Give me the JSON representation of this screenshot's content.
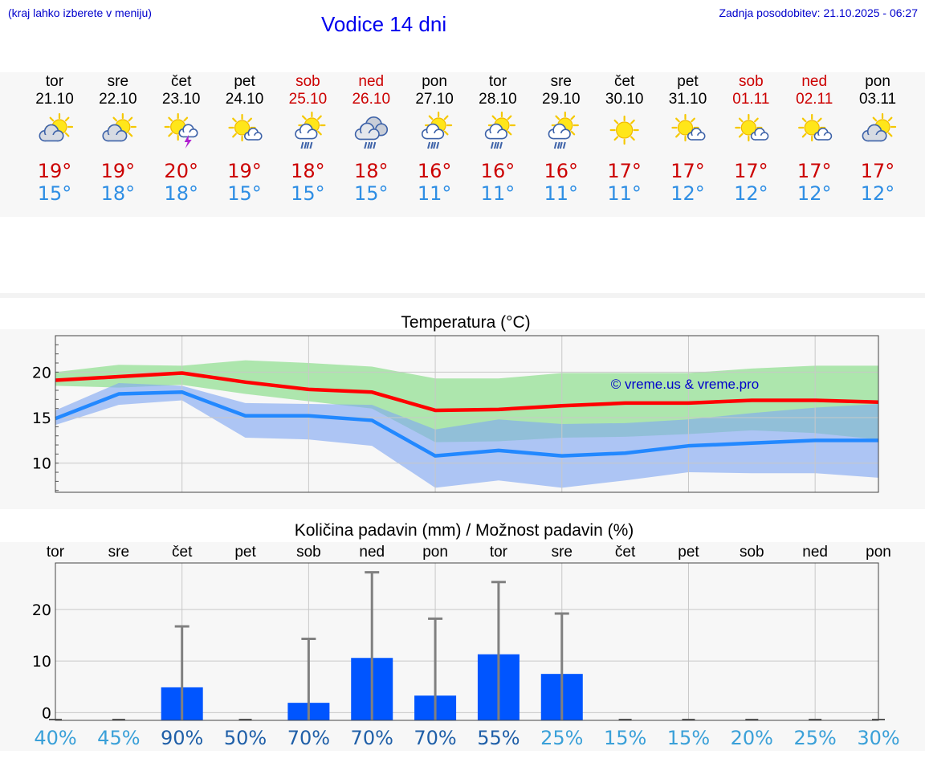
{
  "header": {
    "hint": "(kraj lahko izberete v meniju)",
    "title": "Vodice 14 dni",
    "updated": "Zadnja posodobitev: 21.10.2025 - 06:27"
  },
  "forecast": {
    "days": [
      {
        "day": "tor",
        "date": "21.10",
        "weekend": false,
        "icon": "partly-cloudy-icon",
        "high": "19°",
        "low": "15°"
      },
      {
        "day": "sre",
        "date": "22.10",
        "weekend": false,
        "icon": "partly-cloudy-icon",
        "high": "19°",
        "low": "18°"
      },
      {
        "day": "čet",
        "date": "23.10",
        "weekend": false,
        "icon": "sun-thunder-icon",
        "high": "20°",
        "low": "18°"
      },
      {
        "day": "pet",
        "date": "24.10",
        "weekend": false,
        "icon": "sun-small-cloud-icon",
        "high": "19°",
        "low": "15°"
      },
      {
        "day": "sob",
        "date": "25.10",
        "weekend": true,
        "icon": "sun-cloud-rain-icon",
        "high": "18°",
        "low": "15°"
      },
      {
        "day": "ned",
        "date": "26.10",
        "weekend": true,
        "icon": "cloud-rain-icon",
        "high": "18°",
        "low": "15°"
      },
      {
        "day": "pon",
        "date": "27.10",
        "weekend": false,
        "icon": "sun-cloud-rain-icon",
        "high": "16°",
        "low": "11°"
      },
      {
        "day": "tor",
        "date": "28.10",
        "weekend": false,
        "icon": "sun-cloud-rain-icon",
        "high": "16°",
        "low": "11°"
      },
      {
        "day": "sre",
        "date": "29.10",
        "weekend": false,
        "icon": "sun-cloud-rain-icon",
        "high": "16°",
        "low": "11°"
      },
      {
        "day": "čet",
        "date": "30.10",
        "weekend": false,
        "icon": "sun-icon",
        "high": "17°",
        "low": "11°"
      },
      {
        "day": "pet",
        "date": "31.10",
        "weekend": false,
        "icon": "sun-small-cloud-icon",
        "high": "17°",
        "low": "12°"
      },
      {
        "day": "sob",
        "date": "01.11",
        "weekend": true,
        "icon": "sun-small-cloud-icon",
        "high": "17°",
        "low": "12°"
      },
      {
        "day": "ned",
        "date": "02.11",
        "weekend": true,
        "icon": "sun-small-cloud-icon",
        "high": "17°",
        "low": "12°"
      },
      {
        "day": "pon",
        "date": "03.11",
        "weekend": false,
        "icon": "partly-cloudy-icon",
        "high": "17°",
        "low": "12°"
      }
    ]
  },
  "chart_data": [
    {
      "type": "line",
      "title": "Temperatura (°C)",
      "xlabel": "",
      "ylabel": "",
      "watermark": "© vreme.us & vreme.pro",
      "x": [
        "tor",
        "sre",
        "čet",
        "pet",
        "sob",
        "ned",
        "pon",
        "tor",
        "sre",
        "čet",
        "pet",
        "sob",
        "ned",
        "pon"
      ],
      "ylim": [
        6.8,
        24
      ],
      "yticks": [
        10,
        15,
        20
      ],
      "grid": true,
      "series": [
        {
          "key": "high",
          "color": "#ff0000",
          "values": [
            19.1,
            19.5,
            19.9,
            18.9,
            18.1,
            17.8,
            15.8,
            15.9,
            16.3,
            16.6,
            16.6,
            16.9,
            16.9,
            16.7
          ]
        },
        {
          "key": "low",
          "color": "#2288ff",
          "values": [
            14.9,
            17.6,
            17.8,
            15.2,
            15.2,
            14.7,
            10.8,
            11.4,
            10.8,
            11.1,
            11.9,
            12.2,
            12.5,
            12.5
          ]
        }
      ],
      "bands": [
        {
          "key": "high-range",
          "color": "#7fdc7f",
          "upper": [
            20.0,
            20.8,
            20.7,
            21.3,
            21.0,
            20.6,
            19.3,
            19.3,
            19.9,
            19.9,
            19.9,
            20.4,
            20.7,
            20.7
          ],
          "lower": [
            18.5,
            18.3,
            18.6,
            17.6,
            16.8,
            16.0,
            12.3,
            12.4,
            12.8,
            12.9,
            13.2,
            13.6,
            13.3,
            12.6
          ]
        },
        {
          "key": "low-range",
          "color": "#7fa6f2",
          "upper": [
            15.8,
            18.8,
            18.5,
            16.6,
            16.5,
            16.4,
            13.7,
            14.8,
            14.3,
            14.4,
            14.8,
            15.5,
            16.1,
            16.5
          ],
          "lower": [
            14.2,
            16.4,
            16.9,
            12.8,
            12.6,
            11.9,
            7.3,
            8.1,
            7.3,
            8.1,
            9.0,
            8.9,
            8.9,
            8.4
          ]
        }
      ]
    },
    {
      "type": "bar",
      "title": "Količina padavin (mm) / Možnost padavin (%)",
      "xlabel": "",
      "ylabel": "",
      "categories": [
        "tor",
        "sre",
        "čet",
        "pet",
        "sob",
        "ned",
        "pon",
        "tor",
        "sre",
        "čet",
        "pet",
        "sob",
        "ned",
        "pon"
      ],
      "ylim": [
        -1.5,
        29
      ],
      "yticks": [
        0,
        10,
        20
      ],
      "grid": true,
      "bar_color": "#0055ff",
      "errorbar_color": "#808080",
      "values": [
        0,
        0,
        4.9,
        0,
        1.9,
        10.6,
        3.3,
        11.3,
        7.5,
        0,
        0,
        0,
        0,
        0
      ],
      "upper": [
        0,
        0,
        16.7,
        0,
        14.3,
        27.2,
        18.2,
        25.3,
        19.2,
        0,
        0,
        0,
        0,
        0
      ],
      "probability": [
        "40%",
        "45%",
        "90%",
        "50%",
        "70%",
        "70%",
        "70%",
        "55%",
        "25%",
        "15%",
        "15%",
        "20%",
        "25%",
        "30%"
      ]
    }
  ]
}
